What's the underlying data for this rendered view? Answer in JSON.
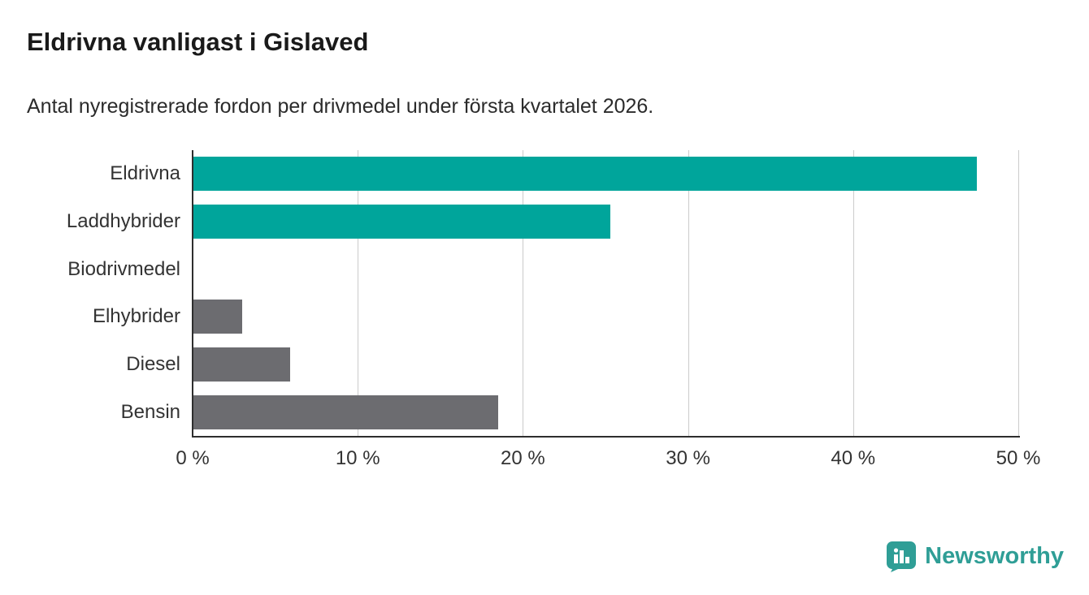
{
  "chart_data": {
    "type": "bar",
    "orientation": "horizontal",
    "title": "Eldrivna vanligast i Gislaved",
    "subtitle": "Antal nyregistrerade fordon per drivmedel under första kvartalet 2026.",
    "categories": [
      "Eldrivna",
      "Laddhybrider",
      "Biodrivmedel",
      "Elhybrider",
      "Diesel",
      "Bensin"
    ],
    "values": [
      47.5,
      25.3,
      0,
      3.0,
      5.9,
      18.5
    ],
    "unit": "%",
    "colors": [
      "#00a59b",
      "#00a59b",
      "#6c6c70",
      "#6c6c70",
      "#6c6c70",
      "#6c6c70"
    ],
    "axis_max": 50.1,
    "x_ticks": [
      0,
      10,
      20,
      30,
      40,
      50
    ],
    "x_tick_labels": [
      "0 %",
      "10 %",
      "20 %",
      "30 %",
      "40 %",
      "50 %"
    ],
    "grid": "vertical-light",
    "grid_color": "#cbcbcb",
    "axis_color": "#2e2e2e",
    "legend": "none"
  },
  "branding": {
    "wordmark": "Newsworthy",
    "color": "#2f9e96",
    "icon": "newsworthy-bubble-chart-icon"
  }
}
